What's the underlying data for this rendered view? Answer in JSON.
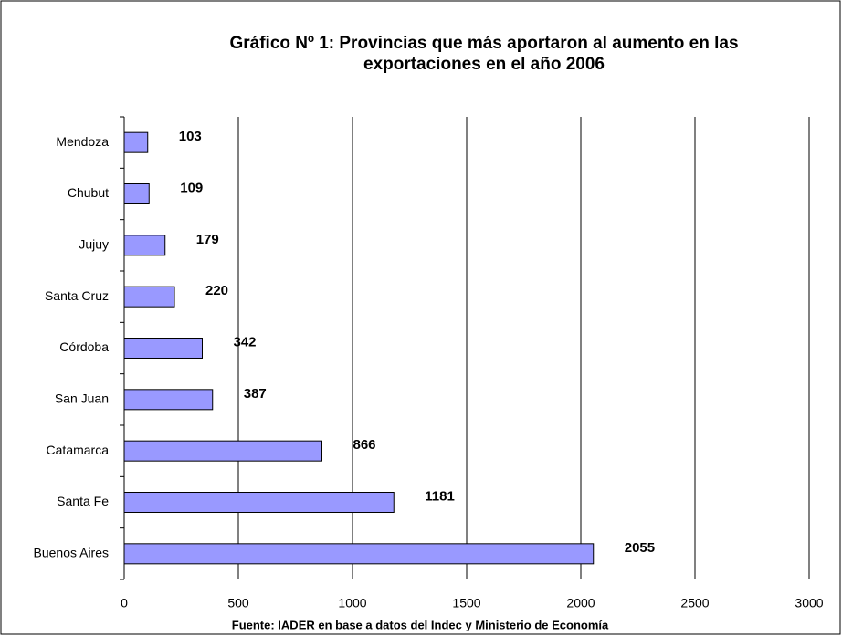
{
  "chart_data": {
    "type": "bar",
    "orientation": "horizontal",
    "title": "Gráfico Nº 1: Provincias que más aportaron al aumento en las exportaciones en el año 2006",
    "source": "Fuente: IADER en base a datos del Indec y Ministerio de Economía",
    "categories": [
      "Mendoza",
      "Chubut",
      "Jujuy",
      "Santa Cruz",
      "Córdoba",
      "San Juan",
      "Catamarca",
      "Santa Fe",
      "Buenos Aires"
    ],
    "values": [
      103,
      109,
      179,
      220,
      342,
      387,
      866,
      1181,
      2055
    ],
    "color": "#9999ff",
    "xlim": [
      0,
      3000
    ],
    "xticks": [
      0,
      500,
      1000,
      1500,
      2000,
      2500,
      3000
    ],
    "grid": true
  }
}
